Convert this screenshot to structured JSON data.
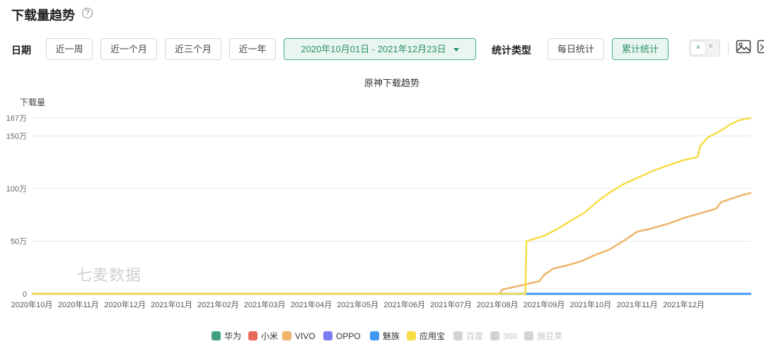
{
  "header": {
    "title": "下载量趋势",
    "help_glyph": "?"
  },
  "filters": {
    "date_label": "日期",
    "ranges": [
      "近一周",
      "近一个月",
      "近三个月",
      "近一年"
    ],
    "date_range": "2020年10月01日 - 2021年12月23日",
    "stat_label": "统计类型",
    "stat_types": [
      "每日统计",
      "累计统计"
    ],
    "active_stat": "累计统计",
    "toggle_chart_glyph": "ılı",
    "toggle_list_glyph": "≡"
  },
  "watermark": "七麦数据",
  "colors": {
    "accent": "#46b28a",
    "huawei": "#3fa27d",
    "xiaomi": "#e8685a",
    "vivo": "#f0b46a",
    "oppo": "#7c7bf0",
    "meizu": "#3f98f2",
    "yingyongbao": "#f7dd47",
    "disabled": "#d3d3d3"
  },
  "chart_data": {
    "type": "line",
    "title": "原神下载趋势",
    "ylabel": "下载量",
    "y_ticks": [
      "0",
      "50万",
      "100万",
      "150万",
      "167万"
    ],
    "y_tick_values": [
      0,
      50,
      100,
      150,
      167
    ],
    "ylim": [
      0,
      167
    ],
    "y_unit": "万",
    "x_tick_labels": [
      "2020年10月",
      "2020年11月",
      "2020年12月",
      "2021年01月",
      "2021年02月",
      "2021年03月",
      "2021年04月",
      "2021年05月",
      "2021年06月",
      "2021年07月",
      "2021年08月",
      "2021年09月",
      "2021年10月",
      "2021年11月",
      "2021年12月"
    ],
    "x_tick_months": [
      0,
      1,
      2,
      3,
      4,
      5,
      6,
      7,
      8,
      9,
      10,
      11,
      12,
      13,
      14
    ],
    "x_range": [
      "2020-10-01",
      "2021-12-23"
    ],
    "grid": true,
    "legend_position": "bottom",
    "series": [
      {
        "name": "华为",
        "color": "#3fa27d",
        "enabled": true,
        "points": []
      },
      {
        "name": "小米",
        "color": "#e8685a",
        "enabled": true,
        "points": []
      },
      {
        "name": "VIVO",
        "color": "#f0b46a",
        "enabled": true,
        "points": [
          [
            0,
            0
          ],
          [
            10.05,
            0
          ],
          [
            10.1,
            4
          ],
          [
            10.5,
            8
          ],
          [
            10.9,
            12
          ],
          [
            11.0,
            18
          ],
          [
            11.2,
            24
          ],
          [
            11.5,
            27
          ],
          [
            11.8,
            31
          ],
          [
            12.1,
            37
          ],
          [
            12.4,
            42
          ],
          [
            12.7,
            50
          ],
          [
            13.0,
            59
          ],
          [
            13.3,
            62
          ],
          [
            13.7,
            67
          ],
          [
            14.0,
            72
          ],
          [
            14.4,
            77
          ],
          [
            14.7,
            81
          ],
          [
            14.8,
            87
          ],
          [
            15.2,
            93
          ],
          [
            15.45,
            96
          ]
        ]
      },
      {
        "name": "OPPO",
        "color": "#7c7bf0",
        "enabled": true,
        "points": []
      },
      {
        "name": "魅族",
        "color": "#3f98f2",
        "enabled": true,
        "points": [
          [
            0,
            0
          ],
          [
            15.45,
            0
          ]
        ]
      },
      {
        "name": "应用宝",
        "color": "#f7dd47",
        "enabled": true,
        "points": [
          [
            0,
            0
          ],
          [
            10.6,
            0
          ],
          [
            10.62,
            50
          ],
          [
            11.0,
            55
          ],
          [
            11.3,
            62
          ],
          [
            11.6,
            70
          ],
          [
            11.9,
            78
          ],
          [
            12.1,
            86
          ],
          [
            12.4,
            96
          ],
          [
            12.7,
            104
          ],
          [
            13.0,
            110
          ],
          [
            13.3,
            116
          ],
          [
            13.6,
            121
          ],
          [
            14.0,
            127
          ],
          [
            14.3,
            130
          ],
          [
            14.35,
            140
          ],
          [
            14.5,
            148
          ],
          [
            14.8,
            155
          ],
          [
            15.0,
            161
          ],
          [
            15.2,
            165
          ],
          [
            15.45,
            167
          ]
        ]
      },
      {
        "name": "百度",
        "color": "#d3d3d3",
        "enabled": false,
        "points": []
      },
      {
        "name": "360",
        "color": "#d3d3d3",
        "enabled": false,
        "points": []
      },
      {
        "name": "豌豆荚",
        "color": "#d3d3d3",
        "enabled": false,
        "points": []
      }
    ]
  }
}
